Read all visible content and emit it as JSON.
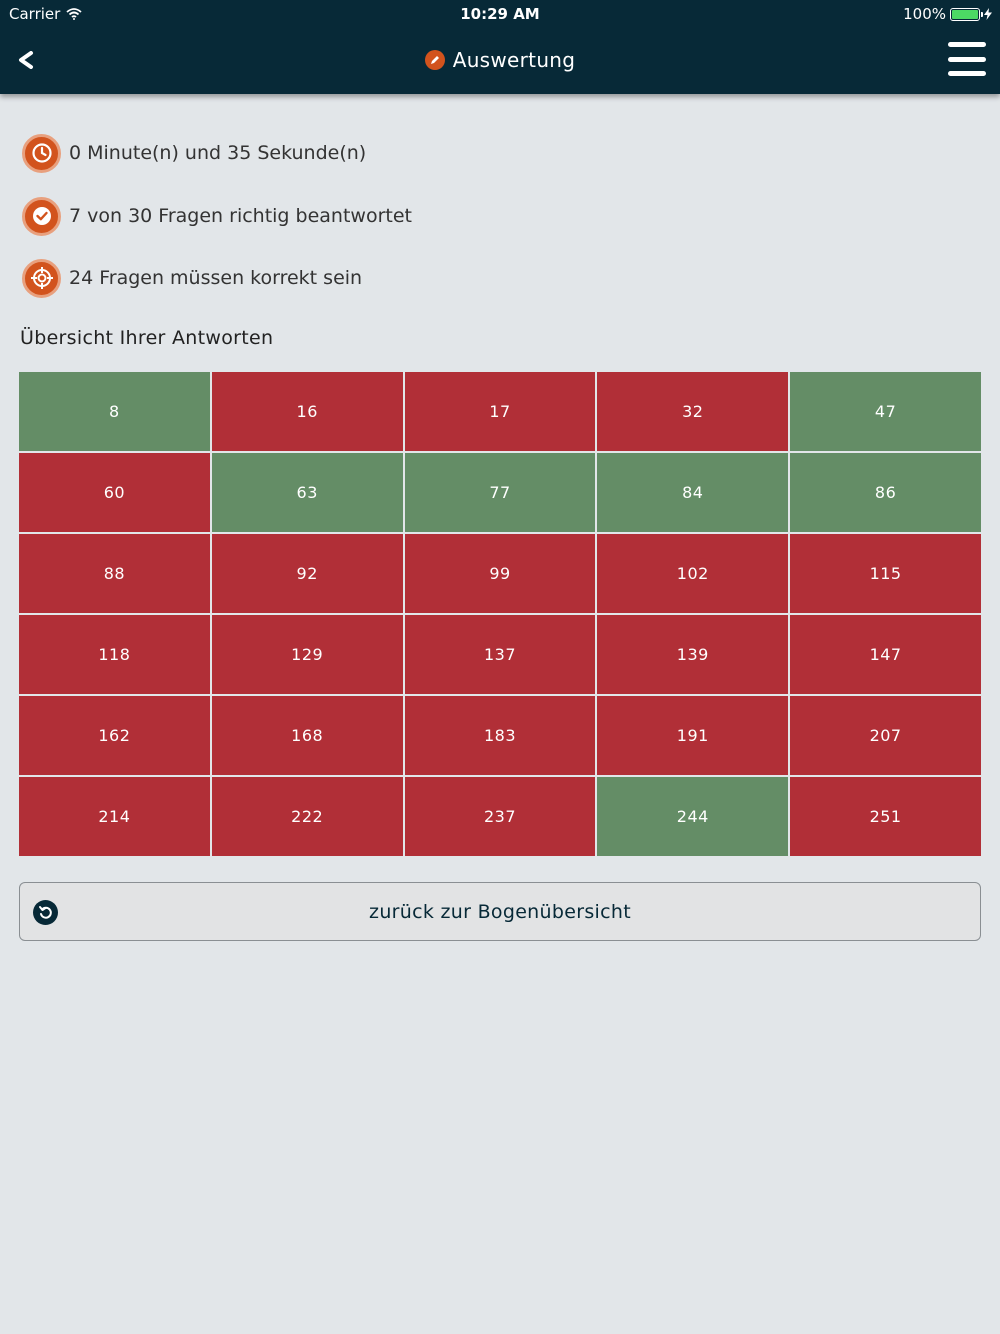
{
  "status_bar": {
    "carrier": "Carrier",
    "time": "10:29 AM",
    "battery": "100%"
  },
  "nav": {
    "title": "Auswertung",
    "title_icon": "pencil-icon"
  },
  "summary": {
    "time_text": "0 Minute(n) und 35 Sekunde(n)",
    "correct_text": "7 von 30 Fragen richtig beantwortet",
    "required_text": "24 Fragen müssen korrekt sein"
  },
  "overview": {
    "title": "Übersicht Ihrer Antworten",
    "colors": {
      "correct": "#648d66",
      "wrong": "#b12f37"
    },
    "answers": [
      {
        "label": "8",
        "correct": true
      },
      {
        "label": "16",
        "correct": false
      },
      {
        "label": "17",
        "correct": false
      },
      {
        "label": "32",
        "correct": false
      },
      {
        "label": "47",
        "correct": true
      },
      {
        "label": "60",
        "correct": false
      },
      {
        "label": "63",
        "correct": true
      },
      {
        "label": "77",
        "correct": true
      },
      {
        "label": "84",
        "correct": true
      },
      {
        "label": "86",
        "correct": true
      },
      {
        "label": "88",
        "correct": false
      },
      {
        "label": "92",
        "correct": false
      },
      {
        "label": "99",
        "correct": false
      },
      {
        "label": "102",
        "correct": false
      },
      {
        "label": "115",
        "correct": false
      },
      {
        "label": "118",
        "correct": false
      },
      {
        "label": "129",
        "correct": false
      },
      {
        "label": "137",
        "correct": false
      },
      {
        "label": "139",
        "correct": false
      },
      {
        "label": "147",
        "correct": false
      },
      {
        "label": "162",
        "correct": false
      },
      {
        "label": "168",
        "correct": false
      },
      {
        "label": "183",
        "correct": false
      },
      {
        "label": "191",
        "correct": false
      },
      {
        "label": "207",
        "correct": false
      },
      {
        "label": "214",
        "correct": false
      },
      {
        "label": "222",
        "correct": false
      },
      {
        "label": "237",
        "correct": false
      },
      {
        "label": "244",
        "correct": true
      },
      {
        "label": "251",
        "correct": false
      }
    ]
  },
  "back_button": {
    "label": "zurück zur Bogenübersicht",
    "icon": "undo-icon"
  },
  "theme": {
    "header_bg": "#072937",
    "accent": "#d2531d",
    "page_bg": "#e2e6e9"
  }
}
